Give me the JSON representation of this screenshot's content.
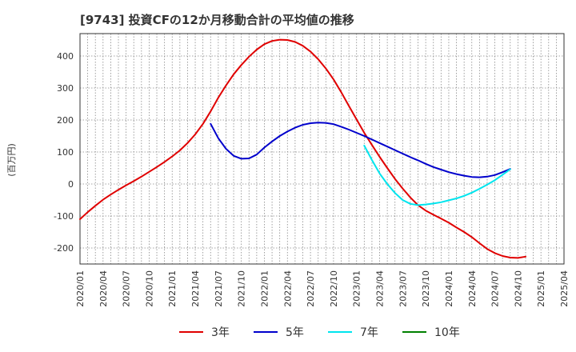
{
  "chart_data": {
    "type": "line",
    "title": "[9743]  投資CFの12か月移動合計の平均値の推移",
    "ylabel": "(百万円)",
    "ylim": [
      -250,
      470
    ],
    "yticks": [
      400,
      300,
      200,
      100,
      0,
      -100,
      -200
    ],
    "xlim": [
      "2020-01",
      "2025-04"
    ],
    "xticks": [
      "2020/01",
      "2020/04",
      "2020/07",
      "2020/10",
      "2021/01",
      "2021/04",
      "2021/07",
      "2021/10",
      "2022/01",
      "2022/04",
      "2022/07",
      "2022/10",
      "2023/01",
      "2023/04",
      "2023/07",
      "2023/10",
      "2024/01",
      "2024/04",
      "2024/07",
      "2024/10",
      "2025/01",
      "2025/04"
    ],
    "grid": true,
    "legend_position": "bottom",
    "series": [
      {
        "name": "3年",
        "color": "#e00000",
        "points": [
          [
            "2020-01",
            -110
          ],
          [
            "2020-02",
            -88
          ],
          [
            "2020-03",
            -68
          ],
          [
            "2020-04",
            -49
          ],
          [
            "2020-05",
            -33
          ],
          [
            "2020-06",
            -18
          ],
          [
            "2020-07",
            -4
          ],
          [
            "2020-08",
            9
          ],
          [
            "2020-09",
            23
          ],
          [
            "2020-10",
            38
          ],
          [
            "2020-11",
            53
          ],
          [
            "2020-12",
            69
          ],
          [
            "2021-01",
            86
          ],
          [
            "2021-02",
            105
          ],
          [
            "2021-03",
            128
          ],
          [
            "2021-04",
            155
          ],
          [
            "2021-05",
            188
          ],
          [
            "2021-06",
            227
          ],
          [
            "2021-07",
            270
          ],
          [
            "2021-08",
            308
          ],
          [
            "2021-09",
            343
          ],
          [
            "2021-10",
            372
          ],
          [
            "2021-11",
            398
          ],
          [
            "2021-12",
            420
          ],
          [
            "2022-01",
            437
          ],
          [
            "2022-02",
            447
          ],
          [
            "2022-03",
            451
          ],
          [
            "2022-04",
            450
          ],
          [
            "2022-05",
            444
          ],
          [
            "2022-06",
            432
          ],
          [
            "2022-07",
            414
          ],
          [
            "2022-08",
            390
          ],
          [
            "2022-09",
            361
          ],
          [
            "2022-10",
            327
          ],
          [
            "2022-11",
            287
          ],
          [
            "2022-12",
            244
          ],
          [
            "2023-01",
            202
          ],
          [
            "2023-02",
            160
          ],
          [
            "2023-03",
            122
          ],
          [
            "2023-04",
            85
          ],
          [
            "2023-05",
            50
          ],
          [
            "2023-06",
            16
          ],
          [
            "2023-07",
            -14
          ],
          [
            "2023-08",
            -42
          ],
          [
            "2023-09",
            -66
          ],
          [
            "2023-10",
            -83
          ],
          [
            "2023-11",
            -96
          ],
          [
            "2023-12",
            -108
          ],
          [
            "2024-01",
            -121
          ],
          [
            "2024-02",
            -136
          ],
          [
            "2024-03",
            -150
          ],
          [
            "2024-04",
            -166
          ],
          [
            "2024-05",
            -185
          ],
          [
            "2024-06",
            -203
          ],
          [
            "2024-07",
            -216
          ],
          [
            "2024-08",
            -225
          ],
          [
            "2024-09",
            -230
          ],
          [
            "2024-10",
            -231
          ],
          [
            "2024-11",
            -227
          ]
        ]
      },
      {
        "name": "5年",
        "color": "#0000cc",
        "points": [
          [
            "2021-06",
            188
          ],
          [
            "2021-07",
            143
          ],
          [
            "2021-08",
            110
          ],
          [
            "2021-09",
            88
          ],
          [
            "2021-10",
            79
          ],
          [
            "2021-11",
            80
          ],
          [
            "2021-12",
            92
          ],
          [
            "2022-01",
            114
          ],
          [
            "2022-02",
            133
          ],
          [
            "2022-03",
            150
          ],
          [
            "2022-04",
            164
          ],
          [
            "2022-05",
            176
          ],
          [
            "2022-06",
            185
          ],
          [
            "2022-07",
            190
          ],
          [
            "2022-08",
            192
          ],
          [
            "2022-09",
            191
          ],
          [
            "2022-10",
            187
          ],
          [
            "2022-11",
            179
          ],
          [
            "2022-12",
            170
          ],
          [
            "2023-01",
            160
          ],
          [
            "2023-02",
            150
          ],
          [
            "2023-03",
            139
          ],
          [
            "2023-04",
            128
          ],
          [
            "2023-05",
            117
          ],
          [
            "2023-06",
            106
          ],
          [
            "2023-07",
            95
          ],
          [
            "2023-08",
            84
          ],
          [
            "2023-09",
            74
          ],
          [
            "2023-10",
            63
          ],
          [
            "2023-11",
            53
          ],
          [
            "2023-12",
            45
          ],
          [
            "2024-01",
            37
          ],
          [
            "2024-02",
            31
          ],
          [
            "2024-03",
            26
          ],
          [
            "2024-04",
            22
          ],
          [
            "2024-05",
            21
          ],
          [
            "2024-06",
            23
          ],
          [
            "2024-07",
            28
          ],
          [
            "2024-08",
            37
          ],
          [
            "2024-09",
            47
          ]
        ]
      },
      {
        "name": "7年",
        "color": "#00e5ee",
        "points": [
          [
            "2023-02",
            120
          ],
          [
            "2023-03",
            75
          ],
          [
            "2023-04",
            33
          ],
          [
            "2023-05",
            0
          ],
          [
            "2023-06",
            -28
          ],
          [
            "2023-07",
            -50
          ],
          [
            "2023-08",
            -62
          ],
          [
            "2023-09",
            -66
          ],
          [
            "2023-10",
            -64
          ],
          [
            "2023-11",
            -61
          ],
          [
            "2023-12",
            -57
          ],
          [
            "2024-01",
            -51
          ],
          [
            "2024-02",
            -45
          ],
          [
            "2024-03",
            -37
          ],
          [
            "2024-04",
            -27
          ],
          [
            "2024-05",
            -15
          ],
          [
            "2024-06",
            -2
          ],
          [
            "2024-07",
            12
          ],
          [
            "2024-08",
            29
          ],
          [
            "2024-09",
            46
          ]
        ]
      },
      {
        "name": "10年",
        "color": "#008000",
        "points": []
      }
    ]
  }
}
